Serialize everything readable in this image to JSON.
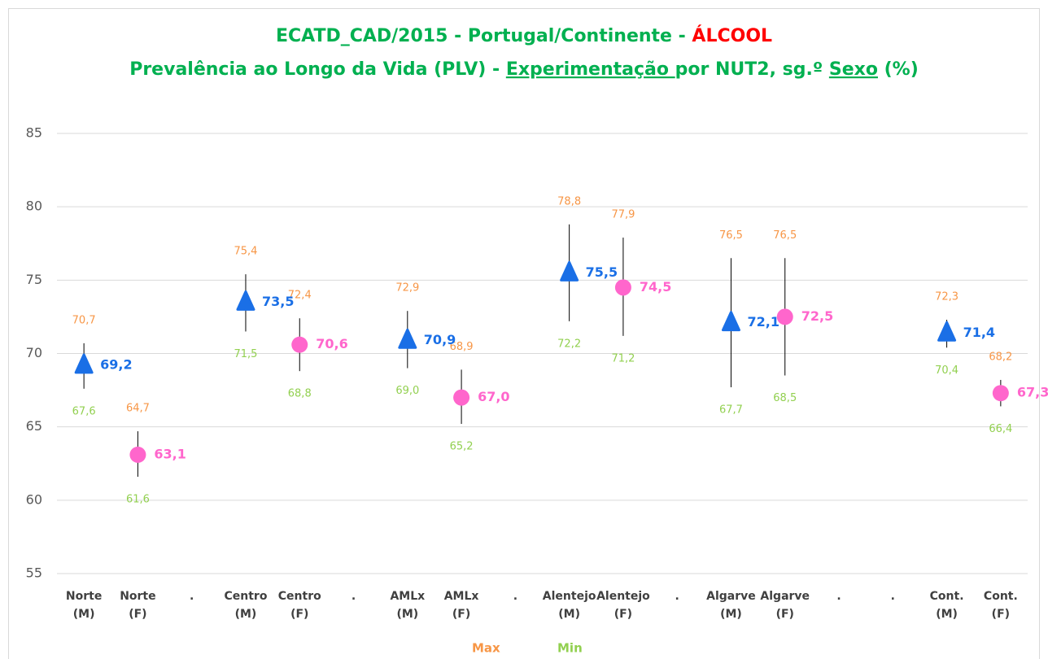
{
  "chart_data": {
    "type": "dot_range",
    "title": [
      {
        "text": "ECATD_CAD/2015 -  Portugal/Continente - ",
        "color": "#00b050"
      },
      {
        "text": "ÁLCOOL",
        "color": "#ff0000"
      }
    ],
    "subtitle": [
      {
        "text": "Prevalência ao Longo da Vida (PLV) - ",
        "color": "#00b050"
      },
      {
        "text": "Experimentação ",
        "color": "#00b050",
        "underline": true
      },
      {
        "text": "por NUT2, sg.º ",
        "color": "#00b050"
      },
      {
        "text": "Sexo",
        "color": "#00b050",
        "underline": true
      },
      {
        "text": " (%)",
        "color": "#00b050"
      }
    ],
    "categories": [
      [
        "Norte",
        "(M)"
      ],
      [
        "Norte",
        "(F)"
      ],
      [
        "."
      ],
      [
        "Centro",
        "(M)"
      ],
      [
        "Centro",
        "(F)"
      ],
      [
        "."
      ],
      [
        "AMLx",
        "(M)"
      ],
      [
        "AMLx",
        "(F)"
      ],
      [
        "."
      ],
      [
        "Alentejo",
        "(M)"
      ],
      [
        "Alentejo",
        "(F)"
      ],
      [
        "."
      ],
      [
        "Algarve",
        "(M)"
      ],
      [
        "Algarve",
        "(F)"
      ],
      [
        "."
      ],
      [
        "."
      ],
      [
        "Cont.",
        "(M)"
      ],
      [
        "Cont.",
        "(F)"
      ]
    ],
    "series": [
      {
        "marker": "triangle",
        "color": "#1a6fe6",
        "values": [
          69.2,
          null,
          null,
          73.5,
          null,
          null,
          70.9,
          null,
          null,
          75.5,
          null,
          null,
          72.1,
          null,
          null,
          null,
          71.4,
          null
        ],
        "value_labels": [
          "69,2",
          null,
          null,
          "73,5",
          null,
          null,
          "70,9",
          null,
          null,
          "75,5",
          null,
          null,
          "72,1",
          null,
          null,
          null,
          "71,4",
          null
        ]
      },
      {
        "marker": "circle",
        "color": "#ff66cc",
        "values": [
          null,
          63.1,
          null,
          null,
          70.6,
          null,
          null,
          67.0,
          null,
          null,
          74.5,
          null,
          null,
          72.5,
          null,
          null,
          null,
          67.3
        ],
        "value_labels": [
          null,
          "63,1",
          null,
          null,
          "70,6",
          null,
          null,
          "67,0",
          null,
          null,
          "74,5",
          null,
          null,
          "72,5",
          null,
          null,
          null,
          "67,3"
        ]
      }
    ],
    "max": {
      "name": "Max",
      "color": "#f79646",
      "values": [
        70.7,
        64.7,
        null,
        75.4,
        72.4,
        null,
        72.9,
        68.9,
        null,
        78.8,
        77.9,
        null,
        76.5,
        76.5,
        null,
        null,
        72.3,
        68.2
      ],
      "value_labels": [
        "70,7",
        "64,7",
        null,
        "75,4",
        "72,4",
        null,
        "72,9",
        "68,9",
        null,
        "78,8",
        "77,9",
        null,
        "76,5",
        "76,5",
        null,
        null,
        "72,3",
        "68,2"
      ]
    },
    "min": {
      "name": "Min",
      "color": "#92d050",
      "values": [
        67.6,
        61.6,
        null,
        71.5,
        68.8,
        null,
        69.0,
        65.2,
        null,
        72.2,
        71.2,
        null,
        67.7,
        68.5,
        null,
        null,
        70.4,
        66.4
      ],
      "value_labels": [
        "67,6",
        "61,6",
        null,
        "71,5",
        "68,8",
        null,
        "69,0",
        "65,2",
        null,
        "72,2",
        "71,2",
        null,
        "67,7",
        "68,5",
        null,
        null,
        "70,4",
        "66,4"
      ]
    },
    "ylim": [
      55,
      85
    ],
    "yticks": [
      55,
      60,
      65,
      70,
      75,
      80,
      85
    ],
    "grid": true
  }
}
